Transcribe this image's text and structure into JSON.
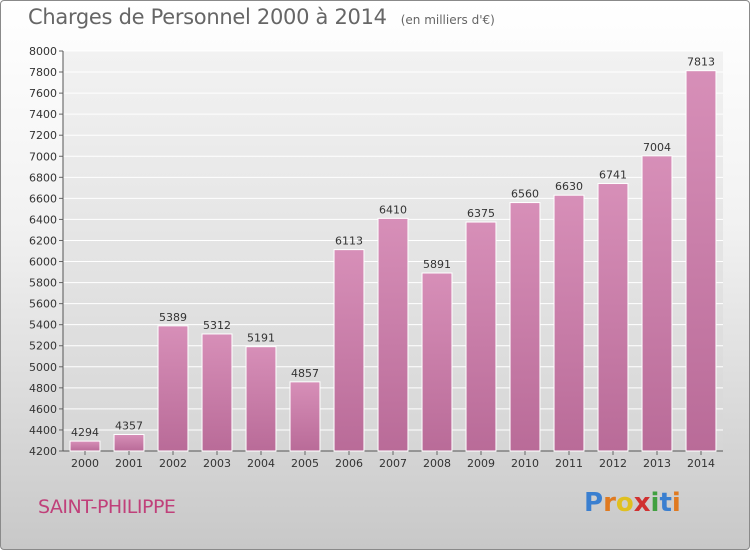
{
  "chart_data": {
    "type": "bar",
    "title": "Charges de Personnel 2000 à 2014",
    "subtitle": "(en milliers d'€)",
    "categories": [
      "2000",
      "2001",
      "2002",
      "2003",
      "2004",
      "2005",
      "2006",
      "2007",
      "2008",
      "2009",
      "2010",
      "2011",
      "2012",
      "2013",
      "2014"
    ],
    "values": [
      4294,
      4357,
      5389,
      5312,
      5191,
      4857,
      6113,
      6410,
      5891,
      6375,
      6560,
      6630,
      6741,
      7004,
      7813
    ],
    "ylim": [
      4200,
      8000
    ],
    "yticks": [
      4200,
      4400,
      4600,
      4800,
      5000,
      5200,
      5400,
      5600,
      5800,
      6000,
      6200,
      6400,
      6600,
      6800,
      7000,
      7200,
      7400,
      7600,
      7800,
      8000
    ],
    "grid": true,
    "bar_color": "#d78fb8",
    "bar_color_dark": "#b96b98"
  },
  "footer": {
    "commune": "SAINT-PHILIPPE",
    "logo_letters": [
      {
        "ch": "P",
        "color": "#3a7fd0"
      },
      {
        "ch": "r",
        "color": "#e07a20"
      },
      {
        "ch": "o",
        "color": "#e0c020"
      },
      {
        "ch": "x",
        "color": "#d03030"
      },
      {
        "ch": "i",
        "color": "#40a040"
      },
      {
        "ch": "t",
        "color": "#3a7fd0"
      },
      {
        "ch": "i",
        "color": "#e07a20"
      }
    ]
  }
}
